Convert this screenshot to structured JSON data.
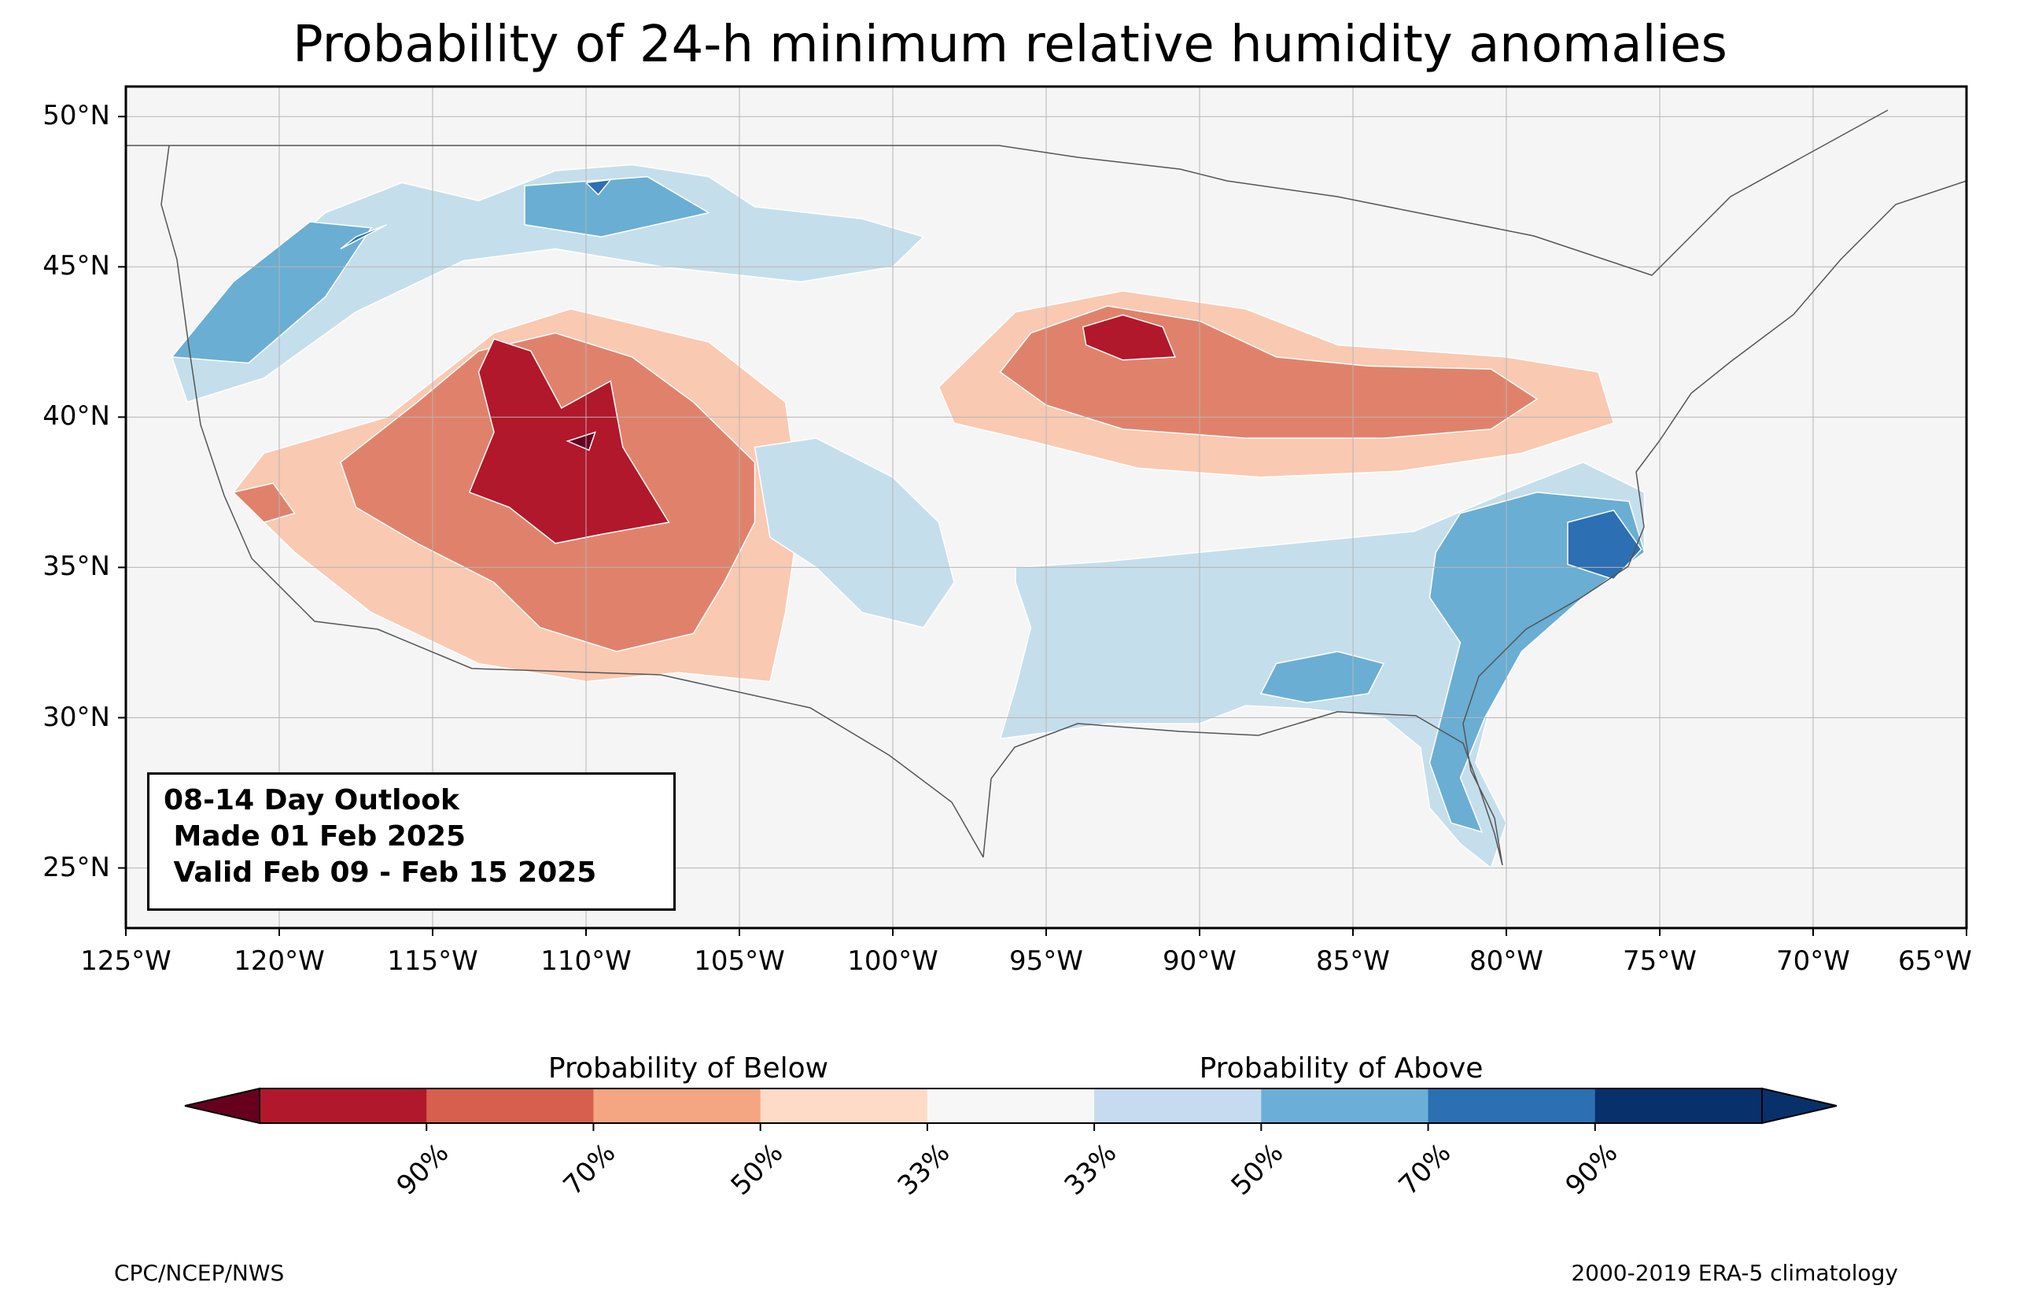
{
  "title": "Probability of 24-h minimum relative humidity anomalies",
  "map": {
    "extent": {
      "lon_min": -125,
      "lon_max": -65,
      "lat_min": 23,
      "lat_max": 51
    },
    "lat_ticks": [
      {
        "value": 50,
        "label": "50°N"
      },
      {
        "value": 45,
        "label": "45°N"
      },
      {
        "value": 40,
        "label": "40°N"
      },
      {
        "value": 35,
        "label": "35°N"
      },
      {
        "value": 30,
        "label": "30°N"
      },
      {
        "value": 25,
        "label": "25°N"
      }
    ],
    "lon_ticks": [
      {
        "value": -125,
        "label": "125°W"
      },
      {
        "value": -120,
        "label": "120°W"
      },
      {
        "value": -115,
        "label": "115°W"
      },
      {
        "value": -110,
        "label": "110°W"
      },
      {
        "value": -105,
        "label": "105°W"
      },
      {
        "value": -100,
        "label": "100°W"
      },
      {
        "value": -95,
        "label": "95°W"
      },
      {
        "value": -90,
        "label": "90°W"
      },
      {
        "value": -85,
        "label": "85°W"
      },
      {
        "value": -80,
        "label": "80°W"
      },
      {
        "value": -75,
        "label": "75°W"
      },
      {
        "value": -70,
        "label": "70°W"
      },
      {
        "value": -65,
        "label": "65°W"
      }
    ],
    "ocean_color": "#f5f5f5",
    "regions": [
      {
        "level": "below_33",
        "lonlat": [
          [
            -120.5,
            38.8
          ],
          [
            -116.5,
            40.0
          ],
          [
            -113.0,
            42.8
          ],
          [
            -110.5,
            43.6
          ],
          [
            -106.0,
            42.5
          ],
          [
            -103.5,
            40.5
          ],
          [
            -103.0,
            37.0
          ],
          [
            -103.5,
            33.5
          ],
          [
            -104.0,
            31.2
          ],
          [
            -107.0,
            31.5
          ],
          [
            -110.0,
            31.2
          ],
          [
            -113.5,
            31.8
          ],
          [
            -117.0,
            33.5
          ],
          [
            -119.5,
            35.5
          ],
          [
            -121.5,
            37.5
          ]
        ]
      },
      {
        "level": "below_33",
        "lonlat": [
          [
            -98.5,
            41.0
          ],
          [
            -96.0,
            43.5
          ],
          [
            -92.5,
            44.2
          ],
          [
            -88.5,
            43.6
          ],
          [
            -85.5,
            42.4
          ],
          [
            -80.0,
            42.0
          ],
          [
            -77.0,
            41.5
          ],
          [
            -76.5,
            39.8
          ],
          [
            -79.5,
            38.8
          ],
          [
            -83.5,
            38.2
          ],
          [
            -88.0,
            38.0
          ],
          [
            -92.0,
            38.3
          ],
          [
            -95.5,
            39.2
          ],
          [
            -98.0,
            39.8
          ]
        ]
      },
      {
        "level": "below_50",
        "lonlat": [
          [
            -118.0,
            38.5
          ],
          [
            -115.5,
            40.5
          ],
          [
            -113.5,
            42.2
          ],
          [
            -111.0,
            42.8
          ],
          [
            -108.5,
            42.0
          ],
          [
            -106.5,
            40.5
          ],
          [
            -104.5,
            38.5
          ],
          [
            -104.5,
            36.5
          ],
          [
            -105.5,
            34.5
          ],
          [
            -106.5,
            32.8
          ],
          [
            -109.0,
            32.2
          ],
          [
            -111.5,
            33.0
          ],
          [
            -113.0,
            34.5
          ],
          [
            -115.5,
            35.8
          ],
          [
            -117.5,
            37.0
          ]
        ]
      },
      {
        "level": "below_50",
        "lonlat": [
          [
            -95.5,
            42.8
          ],
          [
            -93.0,
            43.7
          ],
          [
            -90.0,
            43.2
          ],
          [
            -87.5,
            42.0
          ],
          [
            -84.5,
            41.7
          ],
          [
            -80.5,
            41.6
          ],
          [
            -79.0,
            40.6
          ],
          [
            -80.5,
            39.6
          ],
          [
            -84.0,
            39.3
          ],
          [
            -88.5,
            39.3
          ],
          [
            -92.5,
            39.6
          ],
          [
            -95.0,
            40.4
          ],
          [
            -96.5,
            41.5
          ]
        ]
      },
      {
        "level": "below_50",
        "lonlat": [
          [
            -121.5,
            37.5
          ],
          [
            -120.5,
            36.5
          ],
          [
            -119.5,
            36.8
          ],
          [
            -120.2,
            37.8
          ]
        ]
      },
      {
        "level": "below_70",
        "lonlat": [
          [
            -113.0,
            42.6
          ],
          [
            -111.8,
            42.2
          ],
          [
            -110.8,
            40.3
          ],
          [
            -109.2,
            41.2
          ],
          [
            -108.8,
            39.0
          ],
          [
            -107.3,
            36.5
          ],
          [
            -109.5,
            36.1
          ],
          [
            -111.0,
            35.8
          ],
          [
            -112.5,
            37.0
          ],
          [
            -113.8,
            37.5
          ],
          [
            -113.0,
            39.5
          ],
          [
            -113.5,
            41.5
          ]
        ]
      },
      {
        "level": "below_70",
        "lonlat": [
          [
            -93.8,
            43.0
          ],
          [
            -92.5,
            43.4
          ],
          [
            -91.2,
            43.0
          ],
          [
            -90.8,
            42.0
          ],
          [
            -92.5,
            41.9
          ],
          [
            -93.7,
            42.4
          ]
        ]
      },
      {
        "level": "below_90",
        "lonlat": [
          [
            -110.6,
            39.2
          ],
          [
            -109.7,
            39.5
          ],
          [
            -109.9,
            38.9
          ]
        ]
      },
      {
        "level": "above_33",
        "lonlat": [
          [
            -123.5,
            42.0
          ],
          [
            -121.0,
            44.5
          ],
          [
            -118.5,
            46.8
          ],
          [
            -116.0,
            47.8
          ],
          [
            -113.5,
            47.2
          ],
          [
            -111.0,
            48.2
          ],
          [
            -108.5,
            48.4
          ],
          [
            -106.0,
            48.0
          ],
          [
            -104.5,
            47.0
          ],
          [
            -101.0,
            46.6
          ],
          [
            -99.0,
            46.0
          ],
          [
            -100.0,
            45.0
          ],
          [
            -103.0,
            44.5
          ],
          [
            -107.5,
            45.0
          ],
          [
            -111.0,
            45.6
          ],
          [
            -114.0,
            45.2
          ],
          [
            -117.5,
            43.5
          ],
          [
            -120.5,
            41.3
          ],
          [
            -123.0,
            40.5
          ]
        ]
      },
      {
        "level": "above_50",
        "lonlat": [
          [
            -123.5,
            42.0
          ],
          [
            -121.5,
            44.5
          ],
          [
            -119.0,
            46.5
          ],
          [
            -117.0,
            46.3
          ],
          [
            -118.5,
            44.0
          ],
          [
            -121.0,
            41.8
          ]
        ]
      },
      {
        "level": "above_50",
        "lonlat": [
          [
            -112.0,
            47.7
          ],
          [
            -108.0,
            48.0
          ],
          [
            -106.0,
            46.8
          ],
          [
            -109.5,
            46.0
          ],
          [
            -112.0,
            46.4
          ]
        ]
      },
      {
        "level": "above_70",
        "lonlat": [
          [
            -118.0,
            45.6
          ],
          [
            -116.5,
            46.4
          ],
          [
            -117.5,
            46.0
          ]
        ]
      },
      {
        "level": "above_70",
        "lonlat": [
          [
            -110.0,
            47.8
          ],
          [
            -109.2,
            47.9
          ],
          [
            -109.6,
            47.4
          ]
        ]
      },
      {
        "level": "above_33",
        "lonlat": [
          [
            -96.0,
            35.0
          ],
          [
            -93.0,
            35.2
          ],
          [
            -90.0,
            35.5
          ],
          [
            -87.0,
            35.8
          ],
          [
            -83.0,
            36.2
          ],
          [
            -80.0,
            37.5
          ],
          [
            -77.5,
            38.5
          ],
          [
            -75.5,
            37.5
          ],
          [
            -75.5,
            35.5
          ],
          [
            -77.5,
            34.2
          ],
          [
            -79.5,
            32.5
          ],
          [
            -80.5,
            30.5
          ],
          [
            -81.0,
            28.5
          ],
          [
            -80.0,
            26.5
          ],
          [
            -80.5,
            25.0
          ],
          [
            -81.5,
            25.8
          ],
          [
            -82.5,
            27.0
          ],
          [
            -82.8,
            29.0
          ],
          [
            -84.0,
            30.0
          ],
          [
            -86.5,
            30.3
          ],
          [
            -88.5,
            30.4
          ],
          [
            -90.0,
            29.8
          ],
          [
            -93.0,
            29.8
          ],
          [
            -95.0,
            29.5
          ],
          [
            -96.5,
            29.3
          ],
          [
            -96.0,
            31.0
          ],
          [
            -95.5,
            33.0
          ],
          [
            -96.0,
            34.5
          ]
        ]
      },
      {
        "level": "above_50",
        "lonlat": [
          [
            -81.5,
            36.8
          ],
          [
            -79.0,
            37.5
          ],
          [
            -76.0,
            37.2
          ],
          [
            -75.5,
            35.5
          ],
          [
            -77.5,
            34.0
          ],
          [
            -79.5,
            32.2
          ],
          [
            -80.7,
            30.0
          ],
          [
            -81.5,
            28.0
          ],
          [
            -80.8,
            26.2
          ],
          [
            -81.8,
            26.5
          ],
          [
            -82.5,
            28.5
          ],
          [
            -82.0,
            30.5
          ],
          [
            -81.5,
            32.5
          ],
          [
            -82.5,
            34.0
          ],
          [
            -82.3,
            35.5
          ]
        ]
      },
      {
        "level": "above_50",
        "lonlat": [
          [
            -87.5,
            31.8
          ],
          [
            -85.5,
            32.2
          ],
          [
            -84.0,
            31.8
          ],
          [
            -84.5,
            30.8
          ],
          [
            -86.5,
            30.5
          ],
          [
            -88.0,
            30.8
          ]
        ]
      },
      {
        "level": "above_70",
        "lonlat": [
          [
            -78.0,
            36.5
          ],
          [
            -76.5,
            36.9
          ],
          [
            -75.6,
            35.6
          ],
          [
            -76.5,
            34.6
          ],
          [
            -78.0,
            35.1
          ]
        ]
      },
      {
        "level": "above_33",
        "lonlat": [
          [
            -104.5,
            39.0
          ],
          [
            -102.5,
            39.3
          ],
          [
            -100.0,
            38.0
          ],
          [
            -98.5,
            36.5
          ],
          [
            -98.0,
            34.5
          ],
          [
            -99.0,
            33.0
          ],
          [
            -101.0,
            33.5
          ],
          [
            -102.5,
            35.0
          ],
          [
            -104.0,
            36.0
          ]
        ]
      }
    ]
  },
  "infobox": {
    "line1": "08-14 Day Outlook",
    "line2": " Made 01 Feb 2025",
    "line3": " Valid Feb 09 - Feb 15 2025"
  },
  "colorbar": {
    "title_below": "Probability of Below",
    "title_above": "Probability of Above",
    "colors": {
      "below_90": "#67001f",
      "below_70": "#b2182b",
      "below_50": "#d6604d",
      "below_33": "#f4a582",
      "below_33_light": "#fddbc7",
      "neutral": "#f7f7f7",
      "above_33": "#d1e5f0",
      "above_50": "#92c5de",
      "above_70": "#4393c3",
      "above_90": "#2166ac",
      "above_max": "#053061"
    },
    "segments": [
      "#b2182b",
      "#d6604d",
      "#f4a582",
      "#fddbc7",
      "#f7f7f7",
      "#c6dbef",
      "#6baed6",
      "#2c6fb2",
      "#08306b"
    ],
    "extend_below_color": "#67001f",
    "extend_above_color": "#08306b",
    "ticks": [
      "90%",
      "70%",
      "50%",
      "33%",
      "33%",
      "50%",
      "70%",
      "90%"
    ]
  },
  "level_colors": {
    "below_90": "#67001f",
    "below_70": "#b2182b",
    "below_50": "#e0826b",
    "below_33": "#f9c9b2",
    "above_33": "#c5deec",
    "above_50": "#6aaed3",
    "above_70": "#2c6fb2",
    "above_90": "#08306b"
  },
  "footer": {
    "left": "CPC/NCEP/NWS",
    "right": "2000-2019 ERA-5 climatology"
  }
}
